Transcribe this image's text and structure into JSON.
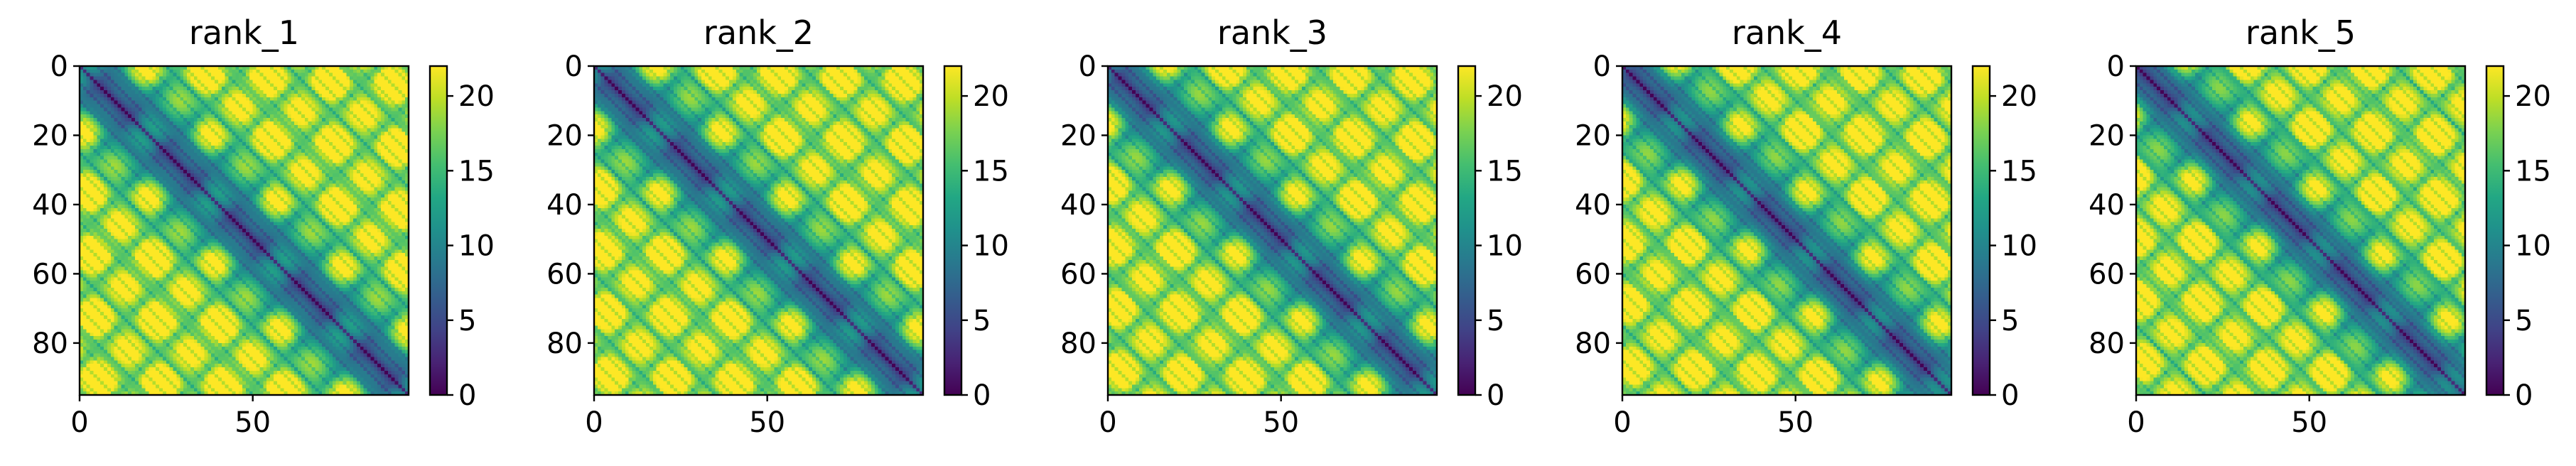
{
  "chart_data": [
    {
      "type": "heatmap",
      "title": "rank_1",
      "n": 95,
      "xticks": [
        0,
        50
      ],
      "yticks": [
        0,
        20,
        40,
        60,
        80
      ],
      "colorbar": {
        "min": 0,
        "max": 22,
        "ticks": [
          0,
          5,
          10,
          15,
          20
        ],
        "colormap": "viridis"
      }
    },
    {
      "type": "heatmap",
      "title": "rank_2",
      "n": 95,
      "xticks": [
        0,
        50
      ],
      "yticks": [
        0,
        20,
        40,
        60,
        80
      ],
      "colorbar": {
        "min": 0,
        "max": 22,
        "ticks": [
          0,
          5,
          10,
          15,
          20
        ],
        "colormap": "viridis"
      }
    },
    {
      "type": "heatmap",
      "title": "rank_3",
      "n": 95,
      "xticks": [
        0,
        50
      ],
      "yticks": [
        0,
        20,
        40,
        60,
        80
      ],
      "colorbar": {
        "min": 0,
        "max": 22,
        "ticks": [
          0,
          5,
          10,
          15,
          20
        ],
        "colormap": "viridis"
      }
    },
    {
      "type": "heatmap",
      "title": "rank_4",
      "n": 95,
      "xticks": [
        0,
        50
      ],
      "yticks": [
        0,
        20,
        40,
        60,
        80
      ],
      "colorbar": {
        "min": 0,
        "max": 22,
        "ticks": [
          0,
          5,
          10,
          15,
          20
        ],
        "colormap": "viridis"
      }
    },
    {
      "type": "heatmap",
      "title": "rank_5",
      "n": 95,
      "xticks": [
        0,
        50
      ],
      "yticks": [
        0,
        20,
        40,
        60,
        80
      ],
      "colorbar": {
        "min": 0,
        "max": 22,
        "ticks": [
          0,
          5,
          10,
          15,
          20
        ],
        "colormap": "viridis"
      }
    }
  ]
}
